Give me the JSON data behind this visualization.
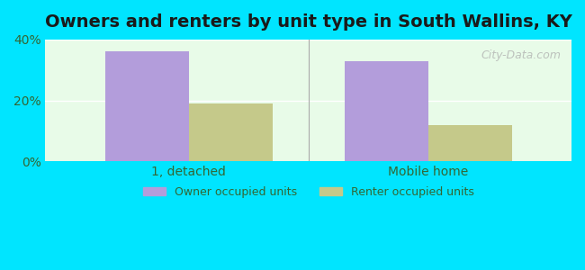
{
  "title": "Owners and renters by unit type in South Wallins, KY",
  "categories": [
    "1, detached",
    "Mobile home"
  ],
  "owner_values": [
    36.0,
    33.0
  ],
  "renter_values": [
    19.0,
    12.0
  ],
  "owner_color": "#b39ddb",
  "renter_color": "#c5c98a",
  "ylim": [
    0,
    40
  ],
  "yticks": [
    0,
    20,
    40
  ],
  "ytick_labels": [
    "0%",
    "20%",
    "40%"
  ],
  "background_color": "#e8fbe8",
  "outer_background": "#00e5ff",
  "bar_width": 0.35,
  "legend_owner": "Owner occupied units",
  "legend_renter": "Renter occupied units",
  "title_fontsize": 14,
  "watermark": "City-Data.com"
}
